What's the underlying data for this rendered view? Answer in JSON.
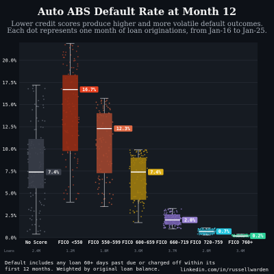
{
  "chart_data": {
    "type": "box",
    "title": "Auto ABS Default Rate at Month 12",
    "subtitle_lines": [
      "Lower credit scores produce higher and more volatile default outcomes.",
      "Each dot represents one month of loan originations, from Jan-16 to Jan-25."
    ],
    "ylim": [
      0,
      22
    ],
    "yticks": [
      0,
      2.5,
      5,
      7.5,
      10,
      12.5,
      15,
      17.5,
      20
    ],
    "ytick_labels": [
      "0.0%",
      "2.5%",
      "5.0%",
      "7.5%",
      "10.0%",
      "12.5%",
      "15.0%",
      "17.5%",
      "20.0%"
    ],
    "loans_label": "Loans",
    "categories": [
      {
        "name": "No Score",
        "color": "#3a3f4a",
        "points_color": "#6b717d",
        "label_bg": "#3a3f4a",
        "label_color": "#f0f0f0",
        "whisker_low": 0.4,
        "q1": 5.6,
        "median": 7.4,
        "q3": 11.1,
        "whisker_high": 17.2,
        "median_label": "7.4%",
        "loans": "2.4M"
      },
      {
        "name": "FICO <550",
        "color": "#9a2d14",
        "points_color": "#c0452b",
        "label_bg": "#e8401f",
        "label_color": "#ffffff",
        "whisker_low": 4.0,
        "q1": 9.8,
        "median": 16.7,
        "q3": 18.3,
        "whisker_high": 21.9,
        "median_label": "16.7%",
        "loans": "1.2M"
      },
      {
        "name": "FICO 550-599",
        "color": "#a3472f",
        "points_color": "#d0613d",
        "label_bg": "#e06a45",
        "label_color": "#ffffff",
        "whisker_low": 3.5,
        "q1": 7.3,
        "median": 12.3,
        "q3": 14.0,
        "whisker_high": 15.7,
        "median_label": "12.3%",
        "loans": "1.8M"
      },
      {
        "name": "FICO 600-659",
        "color": "#a37e0e",
        "points_color": "#d4a514",
        "label_bg": "#e0b219",
        "label_color": "#ffffff",
        "whisker_low": 1.7,
        "q1": 4.3,
        "median": 7.4,
        "q3": 9.0,
        "whisker_high": 9.9,
        "median_label": "7.4%",
        "loans": "3.6M"
      },
      {
        "name": "FICO 660-719",
        "color": "#7a64b5",
        "points_color": "#9b86d6",
        "label_bg": "#9a84d4",
        "label_color": "#ffffff",
        "whisker_low": 1.0,
        "q1": 1.5,
        "median": 2.0,
        "q3": 2.6,
        "whisker_high": 3.3,
        "median_label": "2.0%",
        "loans": "3.7M"
      },
      {
        "name": "FICO 720-759",
        "color": "#1d8aa0",
        "points_color": "#3ec2dc",
        "label_bg": "#26c6e0",
        "label_color": "#ffffff",
        "whisker_low": 0.3,
        "q1": 0.5,
        "median": 0.7,
        "q3": 0.9,
        "whisker_high": 1.1,
        "median_label": "0.7%",
        "loans": "2.0M"
      },
      {
        "name": "FICO 760+",
        "color": "#1f9a6a",
        "points_color": "#35d49b",
        "label_bg": "#2fd39b",
        "label_color": "#ffffff",
        "whisker_low": 0.1,
        "q1": 0.15,
        "median": 0.2,
        "q3": 0.3,
        "whisker_high": 0.4,
        "median_label": "0.2%",
        "loans": "3.4M"
      }
    ],
    "grid": true,
    "colors": {
      "background": "#0d1117",
      "plot_background": "#161b22",
      "grid": "#2a2f38",
      "text": "#f0f0f0",
      "muted": "#7d848f"
    }
  },
  "footnote": "Default includes any loan 60+ days past due or charged off within its\nfirst 12 months. Weighted by original loan balance.",
  "credit": "linkedin.com/in/russellwarden"
}
